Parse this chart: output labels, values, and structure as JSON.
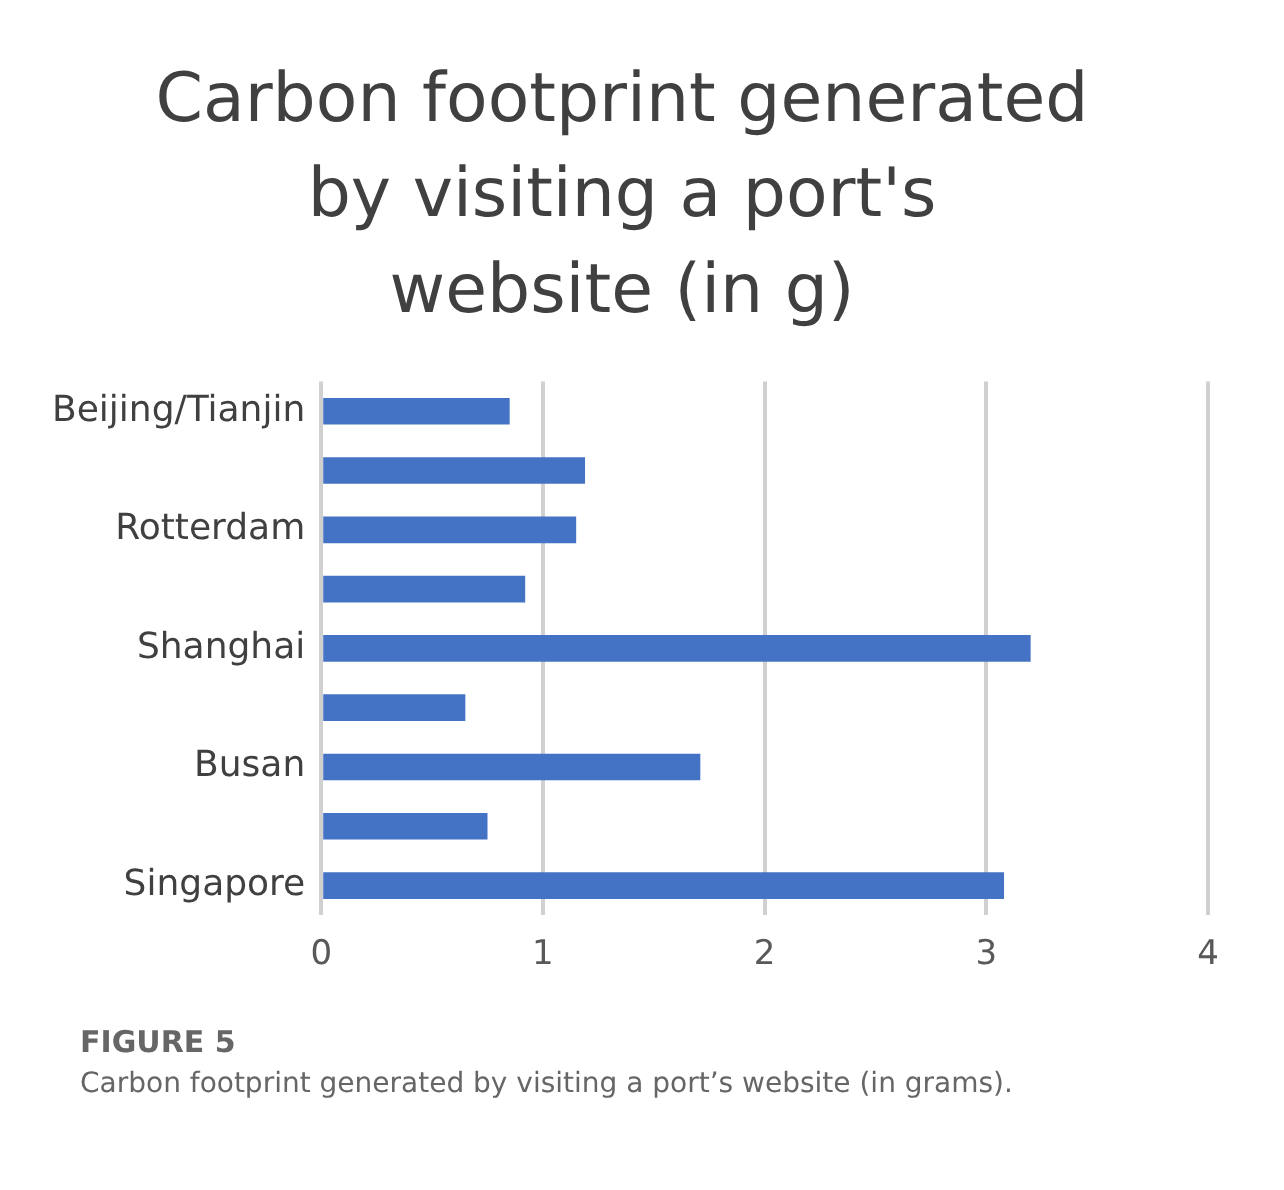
{
  "chart_data": {
    "type": "bar",
    "orientation": "horizontal",
    "title": "Carbon footprint generated by visiting a port's website (in g)",
    "categories": [
      "Beijing/Tianjin",
      null,
      "Rotterdam",
      null,
      "Shanghai",
      null,
      "Busan",
      null,
      "Singapore"
    ],
    "values": [
      0.85,
      1.19,
      1.15,
      0.92,
      3.2,
      0.65,
      1.71,
      0.75,
      3.08
    ],
    "color": "#4472c4",
    "xlim": [
      0,
      4
    ],
    "xticks": [
      0,
      1,
      2,
      3,
      4
    ],
    "grid": "x",
    "legend": false,
    "annotations": [
      "FIGURE 5",
      "Carbon footprint generated by visiting a port’s website (in grams)."
    ]
  }
}
